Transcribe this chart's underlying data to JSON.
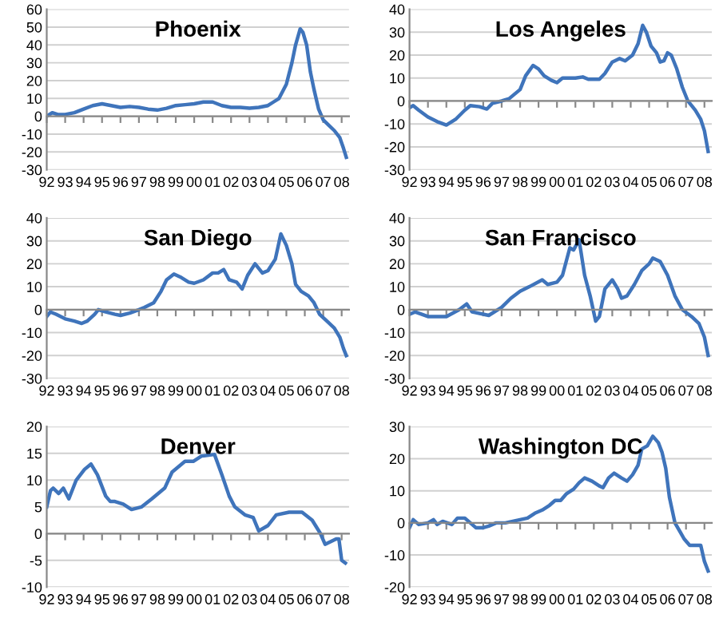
{
  "chart_data": [
    {
      "type": "line",
      "title": "Phoenix",
      "color": "#3f74bb",
      "grid": "y",
      "xlim": [
        1992,
        2008.4
      ],
      "ylim": [
        -30,
        60
      ],
      "yticks": [
        -30,
        -20,
        -10,
        0,
        10,
        20,
        30,
        40,
        50,
        60
      ],
      "xticks": [
        {
          "value": 1992,
          "label": "92"
        },
        {
          "value": 1993,
          "label": "93"
        },
        {
          "value": 1994,
          "label": "94"
        },
        {
          "value": 1995,
          "label": "95"
        },
        {
          "value": 1996,
          "label": "96"
        },
        {
          "value": 1997,
          "label": "97"
        },
        {
          "value": 1998,
          "label": "98"
        },
        {
          "value": 1999,
          "label": "99"
        },
        {
          "value": 2000,
          "label": "00"
        },
        {
          "value": 2001,
          "label": "01"
        },
        {
          "value": 2002,
          "label": "02"
        },
        {
          "value": 2003,
          "label": "03"
        },
        {
          "value": 2004,
          "label": "04"
        },
        {
          "value": 2005,
          "label": "05"
        },
        {
          "value": 2006,
          "label": "06"
        },
        {
          "value": 2007,
          "label": "07"
        },
        {
          "value": 2008,
          "label": "08"
        }
      ],
      "x": [
        1992.0,
        1992.3,
        1992.6,
        1993.0,
        1993.5,
        1994.0,
        1994.5,
        1995.0,
        1995.5,
        1996.0,
        1996.5,
        1997.0,
        1997.5,
        1998.0,
        1998.5,
        1999.0,
        1999.5,
        2000.0,
        2000.5,
        2001.0,
        2001.5,
        2002.0,
        2002.5,
        2003.0,
        2003.5,
        2004.0,
        2004.3,
        2004.6,
        2005.0,
        2005.3,
        2005.5,
        2005.75,
        2005.9,
        2006.1,
        2006.3,
        2006.5,
        2006.75,
        2007.0,
        2007.3,
        2007.6,
        2007.9,
        2008.1,
        2008.25
      ],
      "values": [
        0,
        2,
        1,
        1,
        2,
        4,
        6,
        7,
        6,
        5,
        5.5,
        5,
        4,
        3.5,
        4.5,
        6,
        6.5,
        7,
        8,
        8,
        6,
        5,
        5,
        4.5,
        5,
        6,
        8,
        10,
        18,
        30,
        40,
        49,
        47,
        40,
        25,
        15,
        4,
        -2,
        -5,
        -8,
        -12,
        -18,
        -23
      ]
    },
    {
      "type": "line",
      "title": "Los Angeles",
      "color": "#3f74bb",
      "grid": "y",
      "xlim": [
        1992,
        2008.4
      ],
      "ylim": [
        -30,
        40
      ],
      "yticks": [
        -30,
        -20,
        -10,
        0,
        10,
        20,
        30,
        40
      ],
      "xticks": [
        {
          "value": 1992,
          "label": "92"
        },
        {
          "value": 1993,
          "label": "93"
        },
        {
          "value": 1994,
          "label": "94"
        },
        {
          "value": 1995,
          "label": "95"
        },
        {
          "value": 1996,
          "label": "96"
        },
        {
          "value": 1997,
          "label": "97"
        },
        {
          "value": 1998,
          "label": "98"
        },
        {
          "value": 1999,
          "label": "99"
        },
        {
          "value": 2000,
          "label": "00"
        },
        {
          "value": 2001,
          "label": "01"
        },
        {
          "value": 2002,
          "label": "02"
        },
        {
          "value": 2003,
          "label": "03"
        },
        {
          "value": 2004,
          "label": "04"
        },
        {
          "value": 2005,
          "label": "05"
        },
        {
          "value": 2006,
          "label": "06"
        },
        {
          "value": 2007,
          "label": "07"
        },
        {
          "value": 2008,
          "label": "08"
        }
      ],
      "x": [
        1992.0,
        1992.2,
        1992.5,
        1993.0,
        1993.5,
        1994.0,
        1994.5,
        1995.0,
        1995.3,
        1995.8,
        1996.2,
        1996.5,
        1997.0,
        1997.4,
        1998.0,
        1998.3,
        1998.7,
        1999.0,
        1999.3,
        1999.7,
        2000.0,
        2000.3,
        2001.0,
        2001.4,
        2001.7,
        2002.3,
        2002.6,
        2003.0,
        2003.4,
        2003.7,
        2004.1,
        2004.4,
        2004.65,
        2004.85,
        2005.1,
        2005.4,
        2005.6,
        2005.8,
        2006.0,
        2006.2,
        2006.5,
        2006.8,
        2007.1,
        2007.5,
        2007.8,
        2008.0,
        2008.2
      ],
      "values": [
        -3,
        -2,
        -4,
        -7,
        -9,
        -10.5,
        -8,
        -4,
        -2,
        -2.5,
        -3.5,
        -1,
        0,
        1,
        5,
        11,
        15.5,
        14,
        11,
        9,
        8,
        10,
        10,
        10.5,
        9.5,
        9.5,
        12,
        17,
        18.5,
        17.5,
        20,
        25,
        33,
        30,
        24,
        21,
        17,
        17.5,
        21,
        20,
        14,
        6,
        0,
        -4,
        -8,
        -13,
        -22
      ]
    },
    {
      "type": "line",
      "title": "San Diego",
      "color": "#3f74bb",
      "grid": "y",
      "xlim": [
        1992,
        2008.4
      ],
      "ylim": [
        -30,
        40
      ],
      "yticks": [
        -30,
        -20,
        -10,
        0,
        10,
        20,
        30,
        40
      ],
      "xticks": [
        {
          "value": 1992,
          "label": "92"
        },
        {
          "value": 1993,
          "label": "93"
        },
        {
          "value": 1994,
          "label": "94"
        },
        {
          "value": 1995,
          "label": "95"
        },
        {
          "value": 1996,
          "label": "96"
        },
        {
          "value": 1997,
          "label": "97"
        },
        {
          "value": 1998,
          "label": "98"
        },
        {
          "value": 1999,
          "label": "99"
        },
        {
          "value": 2000,
          "label": "00"
        },
        {
          "value": 2001,
          "label": "01"
        },
        {
          "value": 2002,
          "label": "02"
        },
        {
          "value": 2003,
          "label": "03"
        },
        {
          "value": 2004,
          "label": "04"
        },
        {
          "value": 2005,
          "label": "05"
        },
        {
          "value": 2006,
          "label": "06"
        },
        {
          "value": 2007,
          "label": "07"
        },
        {
          "value": 2008,
          "label": "08"
        }
      ],
      "x": [
        1992.0,
        1992.2,
        1992.5,
        1993.0,
        1993.5,
        1993.9,
        1994.2,
        1994.6,
        1994.8,
        1995.2,
        1995.7,
        1996.0,
        1996.5,
        1997.0,
        1997.3,
        1997.8,
        1998.2,
        1998.5,
        1998.9,
        1999.3,
        1999.7,
        2000.0,
        2000.5,
        2001.0,
        2001.3,
        2001.6,
        2001.9,
        2002.3,
        2002.6,
        2002.9,
        2003.3,
        2003.7,
        2004.0,
        2004.4,
        2004.7,
        2005.0,
        2005.3,
        2005.5,
        2005.8,
        2006.2,
        2006.5,
        2006.8,
        2007.2,
        2007.6,
        2007.9,
        2008.1,
        2008.25
      ],
      "values": [
        -3,
        -1,
        -2,
        -4,
        -5,
        -6,
        -5,
        -2,
        0,
        -1,
        -2,
        -2.5,
        -1.5,
        0,
        1,
        3,
        8,
        13,
        15.5,
        14,
        12,
        11.5,
        13,
        16,
        16,
        17.5,
        13,
        12,
        9,
        15,
        20,
        16,
        17,
        22,
        33,
        28,
        20,
        11,
        8,
        6,
        3,
        -2,
        -5,
        -8,
        -12,
        -17,
        -20
      ]
    },
    {
      "type": "line",
      "title": "San Francisco",
      "color": "#3f74bb",
      "grid": "y",
      "xlim": [
        1992,
        2008.4
      ],
      "ylim": [
        -30,
        40
      ],
      "yticks": [
        -30,
        -20,
        -10,
        0,
        10,
        20,
        30,
        40
      ],
      "xticks": [
        {
          "value": 1992,
          "label": "92"
        },
        {
          "value": 1993,
          "label": "93"
        },
        {
          "value": 1994,
          "label": "94"
        },
        {
          "value": 1995,
          "label": "95"
        },
        {
          "value": 1996,
          "label": "96"
        },
        {
          "value": 1997,
          "label": "97"
        },
        {
          "value": 1998,
          "label": "98"
        },
        {
          "value": 1999,
          "label": "99"
        },
        {
          "value": 2000,
          "label": "00"
        },
        {
          "value": 2001,
          "label": "01"
        },
        {
          "value": 2002,
          "label": "02"
        },
        {
          "value": 2003,
          "label": "03"
        },
        {
          "value": 2004,
          "label": "04"
        },
        {
          "value": 2005,
          "label": "05"
        },
        {
          "value": 2006,
          "label": "06"
        },
        {
          "value": 2007,
          "label": "07"
        },
        {
          "value": 2008,
          "label": "08"
        }
      ],
      "x": [
        1992.0,
        1992.3,
        1993.0,
        1994.0,
        1994.7,
        1995.1,
        1995.4,
        1996.3,
        1997.0,
        1997.5,
        1998.0,
        1998.5,
        1999.2,
        1999.5,
        2000.0,
        2000.3,
        2000.7,
        2000.9,
        2001.2,
        2001.5,
        2001.8,
        2002.1,
        2002.3,
        2002.6,
        2003.0,
        2003.3,
        2003.5,
        2003.8,
        2004.2,
        2004.6,
        2005.0,
        2005.2,
        2005.6,
        2006.0,
        2006.4,
        2006.8,
        2007.3,
        2007.7,
        2008.0,
        2008.2
      ],
      "values": [
        -2,
        -1,
        -3,
        -3,
        0,
        2.5,
        -1,
        -2.5,
        1,
        5,
        8,
        10,
        13,
        11,
        12,
        15,
        27,
        26,
        30.5,
        15,
        6,
        -5,
        -3,
        9,
        13,
        9,
        5,
        6,
        11,
        17,
        20,
        22.5,
        21,
        15,
        6,
        0,
        -3,
        -6,
        -12,
        -20
      ]
    },
    {
      "type": "line",
      "title": "Denver",
      "color": "#3f74bb",
      "grid": "y",
      "xlim": [
        1992,
        2008.4
      ],
      "ylim": [
        -10,
        20
      ],
      "yticks": [
        -10,
        -5,
        0,
        5,
        10,
        15,
        20
      ],
      "xticks": [
        {
          "value": 1992,
          "label": "92"
        },
        {
          "value": 1993,
          "label": "93"
        },
        {
          "value": 1994,
          "label": "94"
        },
        {
          "value": 1995,
          "label": "95"
        },
        {
          "value": 1996,
          "label": "96"
        },
        {
          "value": 1997,
          "label": "97"
        },
        {
          "value": 1998,
          "label": "98"
        },
        {
          "value": 1999,
          "label": "99"
        },
        {
          "value": 2000,
          "label": "00"
        },
        {
          "value": 2001,
          "label": "01"
        },
        {
          "value": 2002,
          "label": "02"
        },
        {
          "value": 2003,
          "label": "03"
        },
        {
          "value": 2004,
          "label": "04"
        },
        {
          "value": 2005,
          "label": "05"
        },
        {
          "value": 2006,
          "label": "06"
        },
        {
          "value": 2007,
          "label": "07"
        },
        {
          "value": 2008,
          "label": "08"
        }
      ],
      "x": [
        1992.0,
        1992.2,
        1992.35,
        1992.65,
        1992.9,
        1993.2,
        1993.6,
        1994.05,
        1994.4,
        1994.75,
        1995.2,
        1995.45,
        1995.7,
        1996.15,
        1996.6,
        1997.15,
        1997.7,
        1998.4,
        1998.8,
        1999.5,
        1999.95,
        2000.4,
        2001.1,
        2001.5,
        2001.9,
        2002.2,
        2002.75,
        2003.2,
        2003.5,
        2004.0,
        2004.45,
        2005.15,
        2005.85,
        2006.4,
        2006.85,
        2007.1,
        2007.7,
        2007.85,
        2008.0,
        2008.2
      ],
      "values": [
        5,
        8,
        8.5,
        7.5,
        8.5,
        6.5,
        10,
        12,
        13,
        11,
        7,
        6,
        6,
        5.5,
        4.5,
        5,
        6.5,
        8.5,
        11.5,
        13.5,
        13.5,
        14.5,
        14.8,
        11,
        7,
        5,
        3.5,
        3,
        0.5,
        1.5,
        3.5,
        4,
        4,
        2.5,
        0,
        -2,
        -1,
        -1,
        -5,
        -5.5
      ]
    },
    {
      "type": "line",
      "title": "Washington DC",
      "color": "#3f74bb",
      "grid": "y",
      "xlim": [
        1992,
        2008.4
      ],
      "ylim": [
        -20,
        30
      ],
      "yticks": [
        -20,
        -10,
        0,
        10,
        20,
        30
      ],
      "xticks": [
        {
          "value": 1992,
          "label": "92"
        },
        {
          "value": 1993,
          "label": "93"
        },
        {
          "value": 1994,
          "label": "94"
        },
        {
          "value": 1995,
          "label": "95"
        },
        {
          "value": 1996,
          "label": "96"
        },
        {
          "value": 1997,
          "label": "97"
        },
        {
          "value": 1998,
          "label": "98"
        },
        {
          "value": 1999,
          "label": "99"
        },
        {
          "value": 2000,
          "label": "00"
        },
        {
          "value": 2001,
          "label": "01"
        },
        {
          "value": 2002,
          "label": "02"
        },
        {
          "value": 2003,
          "label": "03"
        },
        {
          "value": 2004,
          "label": "04"
        },
        {
          "value": 2005,
          "label": "05"
        },
        {
          "value": 2006,
          "label": "06"
        },
        {
          "value": 2007,
          "label": "07"
        },
        {
          "value": 2008,
          "label": "08"
        }
      ],
      "x": [
        1992.0,
        1992.2,
        1992.5,
        1993.0,
        1993.3,
        1993.5,
        1993.8,
        1994.3,
        1994.6,
        1995.0,
        1995.3,
        1995.6,
        1996.0,
        1996.3,
        1996.7,
        1997.2,
        1997.6,
        1998.0,
        1998.4,
        1998.8,
        1999.2,
        1999.6,
        1999.9,
        2000.2,
        2000.5,
        2000.9,
        2001.2,
        2001.5,
        2001.9,
        2002.3,
        2002.5,
        2002.8,
        2003.1,
        2003.5,
        2003.8,
        2004.1,
        2004.4,
        2004.6,
        2004.9,
        2005.2,
        2005.5,
        2005.7,
        2005.9,
        2006.1,
        2006.4,
        2006.7,
        2006.9,
        2007.2,
        2007.5,
        2007.8,
        2008.0,
        2008.2
      ],
      "values": [
        -1.5,
        1,
        -0.5,
        0,
        1,
        -0.5,
        0.5,
        -0.5,
        1.5,
        1.5,
        0,
        -1.5,
        -1.5,
        -1,
        0,
        0,
        0.5,
        1,
        1.5,
        3,
        4,
        5.5,
        7,
        7,
        9,
        10.5,
        12.5,
        14,
        13,
        11.5,
        11,
        14,
        15.5,
        14,
        13,
        15,
        18,
        23,
        24,
        27,
        25,
        22,
        17,
        8,
        0,
        -3,
        -5,
        -7,
        -7,
        -7,
        -12,
        -15
      ]
    }
  ]
}
